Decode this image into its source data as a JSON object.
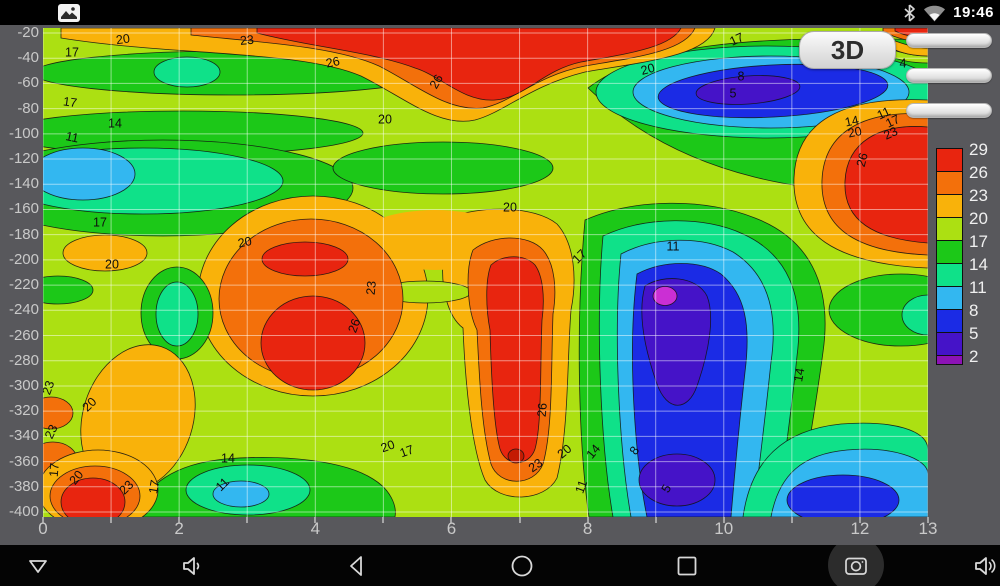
{
  "status": {
    "time": "19:46",
    "icons": [
      "screenshot-notification",
      "bluetooth",
      "wifi"
    ]
  },
  "chart": {
    "button_3d": "3D",
    "sliders": 3
  },
  "chart_data": {
    "type": "filled-contour",
    "title": "",
    "xlabel": "",
    "ylabel": "",
    "x_range": [
      0,
      13
    ],
    "y_range": [
      -400,
      -20
    ],
    "grid": true,
    "levels": [
      2,
      5,
      8,
      11,
      14,
      17,
      20,
      23,
      26,
      29
    ],
    "x_axis": {
      "labeled_ticks": [
        {
          "label": "0",
          "v": 0
        },
        {
          "label": "2",
          "v": 2
        },
        {
          "label": "4",
          "v": 4
        },
        {
          "label": "6",
          "v": 6
        },
        {
          "label": "8",
          "v": 8
        },
        {
          "label": "10",
          "v": 10
        },
        {
          "label": "12",
          "v": 12
        },
        {
          "label": "13",
          "v": 13
        }
      ],
      "minor_tick_every": 1
    },
    "y_axis": {
      "labels": [
        "-20",
        "-40",
        "-60",
        "-80",
        "-100",
        "-120",
        "-140",
        "-160",
        "-180",
        "-200",
        "-220",
        "-240",
        "-260",
        "-280",
        "-300",
        "-320",
        "-340",
        "-360",
        "-380",
        "-400"
      ]
    },
    "legend": {
      "position": "right",
      "labels": [
        "29",
        "26",
        "23",
        "20",
        "17",
        "14",
        "11",
        "8",
        "5",
        "2"
      ],
      "colors": [
        "#e8250f",
        "#f3700b",
        "#f9b20a",
        "#ace012",
        "#1cc818",
        "#0fe189",
        "#33b7f0",
        "#1b2be5",
        "#4513c8",
        "#8c12b5"
      ]
    },
    "features": [
      {
        "kind": "high",
        "value": ">26",
        "center": [
          6.2,
          -40
        ],
        "note": "red band along top, x 2.5-8.8"
      },
      {
        "kind": "low",
        "value": "<5",
        "center": [
          10.4,
          -65
        ],
        "note": "blue/indigo blob top right"
      },
      {
        "kind": "high",
        "value": ">26",
        "center": [
          12.4,
          -140
        ],
        "note": "red blob at right edge"
      },
      {
        "kind": "high",
        "value": ">26",
        "center": [
          3.9,
          -200
        ],
        "note": "small red core center-left"
      },
      {
        "kind": "high",
        "value": ">26",
        "center": [
          4.0,
          -266
        ],
        "note": "large red core center-left"
      },
      {
        "kind": "high",
        "value": ">26",
        "center": [
          7.0,
          -278
        ],
        "note": "red vertical column center"
      },
      {
        "kind": "low",
        "value": "<2",
        "center": [
          9.1,
          -229
        ],
        "note": "magenta minimum in indigo column"
      },
      {
        "kind": "low",
        "value": "<5",
        "center": [
          9.3,
          -375
        ],
        "note": "indigo blob bottom"
      },
      {
        "kind": "high",
        "value": ">26",
        "center": [
          0.7,
          -392
        ],
        "note": "red blob bottom left"
      },
      {
        "kind": "low",
        "value": "<11",
        "center": [
          2.9,
          -386
        ],
        "note": "sky-blue blob bottom left-center"
      },
      {
        "kind": "low",
        "value": "<11",
        "center": [
          0.6,
          -132
        ],
        "note": "sky-blue patch upper left"
      }
    ],
    "contour_labels": [
      {
        "t": "20",
        "x": 80,
        "y": 12,
        "r": -8
      },
      {
        "t": "23",
        "x": 204,
        "y": 13,
        "r": -5
      },
      {
        "t": "26",
        "x": 290,
        "y": 35,
        "r": -12
      },
      {
        "t": "17",
        "x": 29,
        "y": 25,
        "r": 0
      },
      {
        "t": "17",
        "x": 27,
        "y": 75,
        "r": 8
      },
      {
        "t": "14",
        "x": 72,
        "y": 96,
        "r": 0
      },
      {
        "t": "11",
        "x": 29,
        "y": 110,
        "r": 12
      },
      {
        "t": "20",
        "x": 342,
        "y": 92,
        "r": 0
      },
      {
        "t": "26",
        "x": 394,
        "y": 54,
        "r": -60
      },
      {
        "t": "20",
        "x": 605,
        "y": 42,
        "r": -15
      },
      {
        "t": "8",
        "x": 698,
        "y": 49,
        "r": 0
      },
      {
        "t": "5",
        "x": 690,
        "y": 66,
        "r": 0
      },
      {
        "t": "17",
        "x": 694,
        "y": 12,
        "r": -25
      },
      {
        "t": "4",
        "x": 860,
        "y": 36,
        "r": 0
      },
      {
        "t": "14",
        "x": 809,
        "y": 94,
        "r": -12
      },
      {
        "t": "20",
        "x": 812,
        "y": 105,
        "r": -12
      },
      {
        "t": "11",
        "x": 841,
        "y": 86,
        "r": -25
      },
      {
        "t": "17",
        "x": 850,
        "y": 94,
        "r": -25
      },
      {
        "t": "23",
        "x": 848,
        "y": 106,
        "r": -25
      },
      {
        "t": "26",
        "x": 820,
        "y": 132,
        "r": -75
      },
      {
        "t": "17",
        "x": 57,
        "y": 195,
        "r": 0
      },
      {
        "t": "20",
        "x": 69,
        "y": 237,
        "r": 0
      },
      {
        "t": "20",
        "x": 202,
        "y": 215,
        "r": -12
      },
      {
        "t": "23",
        "x": 329,
        "y": 260,
        "r": -85
      },
      {
        "t": "26",
        "x": 312,
        "y": 298,
        "r": -70
      },
      {
        "t": "20",
        "x": 467,
        "y": 180,
        "r": 0
      },
      {
        "t": "17",
        "x": 537,
        "y": 229,
        "r": -45
      },
      {
        "t": "11",
        "x": 630,
        "y": 219,
        "r": 0
      },
      {
        "t": "14",
        "x": 757,
        "y": 347,
        "r": -80
      },
      {
        "t": "26",
        "x": 500,
        "y": 382,
        "r": -85
      },
      {
        "t": "23",
        "x": 493,
        "y": 438,
        "r": -35
      },
      {
        "t": "20",
        "x": 522,
        "y": 424,
        "r": -40
      },
      {
        "t": "14",
        "x": 551,
        "y": 424,
        "r": -50
      },
      {
        "t": "11",
        "x": 539,
        "y": 459,
        "r": -70
      },
      {
        "t": "8",
        "x": 592,
        "y": 423,
        "r": -55
      },
      {
        "t": "5",
        "x": 624,
        "y": 461,
        "r": -60
      },
      {
        "t": "20",
        "x": 345,
        "y": 419,
        "r": -20
      },
      {
        "t": "17",
        "x": 364,
        "y": 424,
        "r": -20
      },
      {
        "t": "23",
        "x": 6,
        "y": 360,
        "r": -70
      },
      {
        "t": "23",
        "x": 9,
        "y": 404,
        "r": -65
      },
      {
        "t": "20",
        "x": 47,
        "y": 377,
        "r": -45
      },
      {
        "t": "17",
        "x": 12,
        "y": 442,
        "r": -85
      },
      {
        "t": "20",
        "x": 34,
        "y": 450,
        "r": -50
      },
      {
        "t": "23",
        "x": 84,
        "y": 460,
        "r": -45
      },
      {
        "t": "17",
        "x": 112,
        "y": 459,
        "r": -80
      },
      {
        "t": "14",
        "x": 185,
        "y": 431,
        "r": 0
      },
      {
        "t": "11",
        "x": 180,
        "y": 457,
        "r": -45
      }
    ]
  },
  "colors": {
    "c29": "#e8250f",
    "c26": "#f3700b",
    "c23": "#f9b20a",
    "c20": "#ace012",
    "c17": "#1cc818",
    "c14": "#0fe189",
    "c11": "#33b7f0",
    "c8": "#1b2be5",
    "c5": "#4513c8",
    "c2": "#8c12b5",
    "magenta": "#cb2fd4",
    "darkred": "#c41a02",
    "grid": "rgba(255,255,255,0.5)",
    "main_bg": "#58585c",
    "bar_bg": "#000000"
  },
  "nav": {
    "buttons": [
      "collapse",
      "volume-down",
      "back",
      "home",
      "recents",
      "screenshot",
      "volume-up"
    ]
  }
}
